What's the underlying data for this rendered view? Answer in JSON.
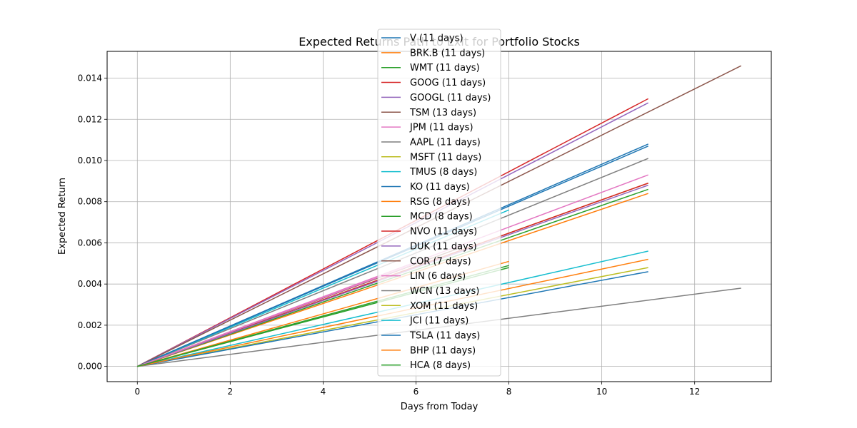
{
  "chart_data": {
    "type": "line",
    "title": "Expected Returns Path to Exit for Portfolio Stocks",
    "xlabel": "Days from Today",
    "ylabel": "Expected Return",
    "xlim": [
      -0.65,
      13.65
    ],
    "ylim": [
      -0.00074,
      0.0153
    ],
    "xticks": [
      "0",
      "2",
      "4",
      "6",
      "8",
      "10",
      "12"
    ],
    "yticks": [
      "0.000",
      "0.002",
      "0.004",
      "0.006",
      "0.008",
      "0.010",
      "0.012",
      "0.014"
    ],
    "grid": true,
    "legend_position": "upper center",
    "series": [
      {
        "name": "V (11 days)",
        "color": "#1f77b4",
        "x": [
          0,
          11
        ],
        "y": [
          0,
          0.0108
        ]
      },
      {
        "name": "BRK.B (11 days)",
        "color": "#ff7f0e",
        "x": [
          0,
          11
        ],
        "y": [
          0,
          0.0084
        ]
      },
      {
        "name": "WMT (11 days)",
        "color": "#2ca02c",
        "x": [
          0,
          11
        ],
        "y": [
          0,
          0.0086
        ]
      },
      {
        "name": "GOOG (11 days)",
        "color": "#d62728",
        "x": [
          0,
          11
        ],
        "y": [
          0,
          0.013
        ]
      },
      {
        "name": "GOOGL (11 days)",
        "color": "#9467bd",
        "x": [
          0,
          11
        ],
        "y": [
          0,
          0.0128
        ]
      },
      {
        "name": "TSM (13 days)",
        "color": "#8c564b",
        "x": [
          0,
          13
        ],
        "y": [
          0,
          0.0146
        ]
      },
      {
        "name": "JPM (11 days)",
        "color": "#e377c2",
        "x": [
          0,
          11
        ],
        "y": [
          0,
          0.0093
        ]
      },
      {
        "name": "AAPL (11 days)",
        "color": "#7f7f7f",
        "x": [
          0,
          11
        ],
        "y": [
          0,
          0.0101
        ]
      },
      {
        "name": "MSFT (11 days)",
        "color": "#bcbd22",
        "x": [
          0,
          11
        ],
        "y": [
          0,
          0.0089
        ]
      },
      {
        "name": "TMUS (8 days)",
        "color": "#17becf",
        "x": [
          0,
          8
        ],
        "y": [
          0,
          0.0076
        ]
      },
      {
        "name": "KO (11 days)",
        "color": "#1f77b4",
        "x": [
          0,
          11
        ],
        "y": [
          0,
          0.0107
        ]
      },
      {
        "name": "RSG (8 days)",
        "color": "#ff7f0e",
        "x": [
          0,
          8
        ],
        "y": [
          0,
          0.0051
        ]
      },
      {
        "name": "MCD (8 days)",
        "color": "#2ca02c",
        "x": [
          0,
          8
        ],
        "y": [
          0,
          0.0049
        ]
      },
      {
        "name": "NVO (11 days)",
        "color": "#d62728",
        "x": [
          0,
          11
        ],
        "y": [
          0,
          0.0089
        ]
      },
      {
        "name": "DUK (11 days)",
        "color": "#9467bd",
        "x": [
          0,
          11
        ],
        "y": [
          0,
          0.0088
        ]
      },
      {
        "name": "COR (7 days)",
        "color": "#8c564b",
        "x": [
          0,
          7
        ],
        "y": [
          0,
          0.0058
        ]
      },
      {
        "name": "LIN (6 days)",
        "color": "#e377c2",
        "x": [
          0,
          6
        ],
        "y": [
          0,
          0.005
        ]
      },
      {
        "name": "WCN (13 days)",
        "color": "#7f7f7f",
        "x": [
          0,
          13
        ],
        "y": [
          0,
          0.0038
        ]
      },
      {
        "name": "XOM (11 days)",
        "color": "#bcbd22",
        "x": [
          0,
          11
        ],
        "y": [
          0,
          0.0048
        ]
      },
      {
        "name": "JCI (11 days)",
        "color": "#17becf",
        "x": [
          0,
          11
        ],
        "y": [
          0,
          0.0056
        ]
      },
      {
        "name": "TSLA (11 days)",
        "color": "#1f77b4",
        "x": [
          0,
          11
        ],
        "y": [
          0,
          0.0046
        ]
      },
      {
        "name": "BHP (11 days)",
        "color": "#ff7f0e",
        "x": [
          0,
          11
        ],
        "y": [
          0,
          0.0052
        ]
      },
      {
        "name": "HCA (8 days)",
        "color": "#2ca02c",
        "x": [
          0,
          8
        ],
        "y": [
          0,
          0.0048
        ]
      }
    ]
  }
}
